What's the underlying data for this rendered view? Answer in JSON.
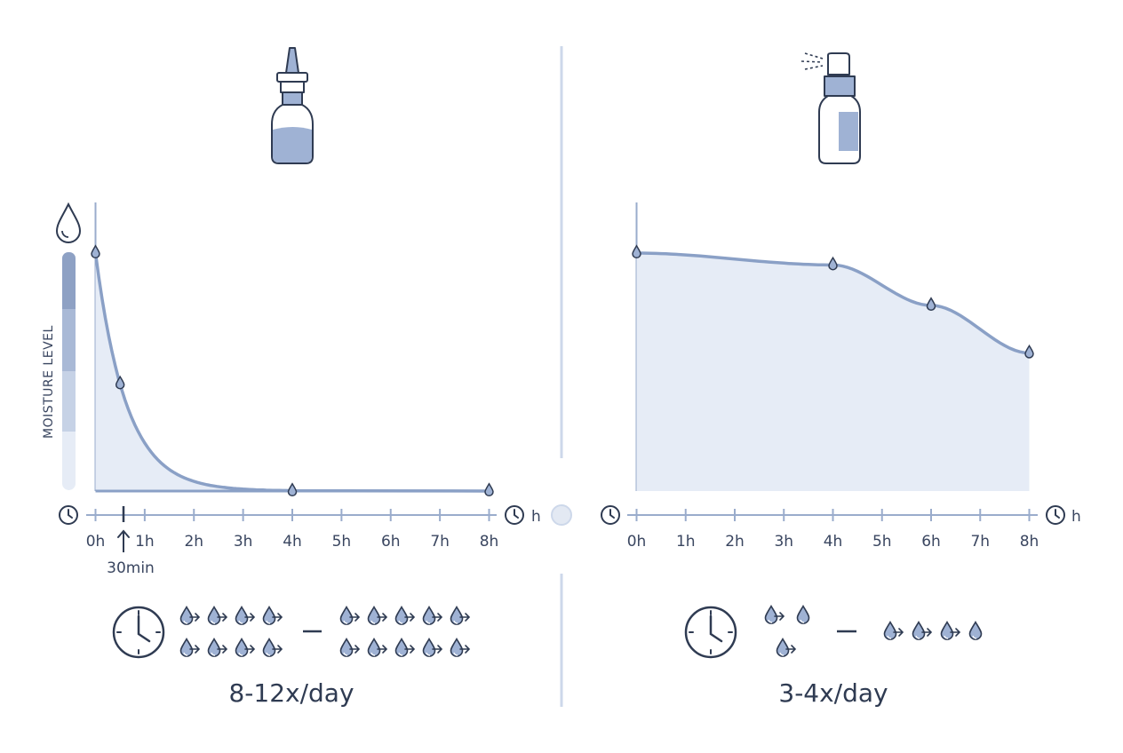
{
  "left_panel": {
    "y_axis_label": "MOISTURE LEVEL",
    "x_unit": "h",
    "annotation": "30min",
    "frequency": "8-12x/day"
  },
  "right_panel": {
    "x_unit": "h",
    "frequency": "3-4x/day"
  },
  "colors": {
    "line": "#8aa0c6",
    "fill": "#e6ecf6",
    "axis": "#9aaccc",
    "drop_fill": "#9fb2d4",
    "stroke_dark": "#2f3b52"
  },
  "chart_data": [
    {
      "type": "area",
      "x_ticks": [
        "0h",
        "1h",
        "2h",
        "3h",
        "4h",
        "5h",
        "6h",
        "7h",
        "8h"
      ],
      "x": [
        0,
        0.5,
        4,
        8
      ],
      "values": [
        100,
        45,
        0,
        0
      ],
      "xlim": [
        0,
        8
      ],
      "xlabel": "h",
      "ylabel": "MOISTURE LEVEL"
    },
    {
      "type": "area",
      "x_ticks": [
        "0h",
        "1h",
        "2h",
        "3h",
        "4h",
        "5h",
        "6h",
        "7h",
        "8h"
      ],
      "x": [
        0,
        4,
        6,
        8
      ],
      "values": [
        100,
        95,
        78,
        58
      ],
      "xlim": [
        0,
        8
      ],
      "xlabel": "h"
    }
  ]
}
